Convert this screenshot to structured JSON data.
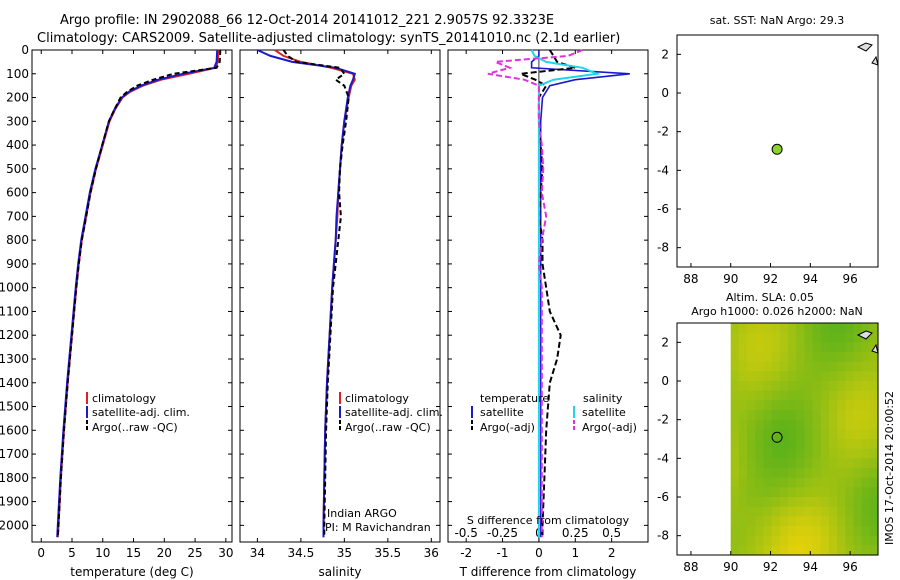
{
  "header": {
    "line1": "Argo profile: IN 2902088_66 12-Oct-2014 20141012_221 2.9057S 92.3323E",
    "line2": "Climatology: CARS2009. Satellite-adjusted climatology: synTS_20141010.nc (2.1d earlier)"
  },
  "side_stamp": "IMOS 17-Oct-2014 20:00:52",
  "legend": {
    "climatology": "climatology",
    "satellite": "satellite-adj. clim.",
    "argo": "Argo(..raw -QC)",
    "temperature": "temperature",
    "salinity": "salinity",
    "satellite_short": "satellite",
    "argo_adj": "Argo(-adj)"
  },
  "credits": {
    "program": "Indian ARGO",
    "pi": "PI: M Ravichandran"
  },
  "colors": {
    "climatology": "#e02020",
    "satellite": "#1a1acc",
    "argo": "#000000",
    "cyan": "#22d4e8",
    "magenta": "#e030e0",
    "dot": "#8bd22a"
  },
  "chart_data": [
    {
      "type": "line",
      "name": "temperature-profile",
      "xlabel": "temperature (deg C)",
      "ylabel": "",
      "xlim": [
        -1.5,
        31
      ],
      "ylim": [
        2070,
        0
      ],
      "xticks": [
        0,
        5,
        10,
        15,
        20,
        25,
        30
      ],
      "yticks": [
        0,
        100,
        200,
        300,
        400,
        500,
        600,
        700,
        800,
        900,
        1000,
        1100,
        1200,
        1300,
        1400,
        1500,
        1600,
        1700,
        1800,
        1900,
        2000
      ],
      "depth": [
        0,
        50,
        75,
        100,
        125,
        150,
        175,
        200,
        250,
        300,
        400,
        500,
        600,
        700,
        800,
        900,
        1000,
        1200,
        1400,
        1600,
        1800,
        2000,
        2050
      ],
      "series": [
        {
          "name": "climatology",
          "values": [
            28.8,
            28.7,
            28.3,
            24.0,
            19.5,
            16.5,
            14.5,
            13.2,
            12.0,
            11.1,
            10.0,
            8.9,
            8.0,
            7.3,
            6.6,
            6.1,
            5.7,
            5.0,
            4.3,
            3.7,
            3.2,
            2.8,
            2.7
          ]
        },
        {
          "name": "satellite",
          "values": [
            28.6,
            28.5,
            28.1,
            23.0,
            19.0,
            16.2,
            14.3,
            13.1,
            11.9,
            11.0,
            9.9,
            8.8,
            7.9,
            7.2,
            6.5,
            6.0,
            5.6,
            4.9,
            4.2,
            3.6,
            3.1,
            2.7,
            2.6
          ]
        },
        {
          "name": "argo",
          "values": [
            29.1,
            29.0,
            28.5,
            21.5,
            18.2,
            15.6,
            14.0,
            12.9,
            11.9,
            11.0,
            9.9,
            8.9,
            8.0,
            7.3,
            6.6,
            6.1,
            5.7,
            5.0,
            4.3,
            3.7,
            3.2,
            2.8,
            2.7
          ]
        }
      ]
    },
    {
      "type": "line",
      "name": "salinity-profile",
      "xlabel": "salinity",
      "xlim": [
        33.8,
        36.1
      ],
      "ylim": [
        2070,
        0
      ],
      "xticks": [
        34,
        34.5,
        35,
        35.5,
        36
      ],
      "depth": [
        0,
        25,
        50,
        75,
        100,
        125,
        150,
        200,
        300,
        400,
        500,
        600,
        700,
        800,
        900,
        1000,
        1200,
        1400,
        1600,
        1800,
        2000,
        2050
      ],
      "series": [
        {
          "name": "climatology",
          "values": [
            34.2,
            34.3,
            34.5,
            34.85,
            35.1,
            35.12,
            35.08,
            35.05,
            35.0,
            34.97,
            34.95,
            34.93,
            34.92,
            34.9,
            34.88,
            34.86,
            34.83,
            34.8,
            34.78,
            34.77,
            34.76,
            34.76
          ]
        },
        {
          "name": "satellite",
          "values": [
            34.0,
            34.15,
            34.4,
            34.9,
            35.12,
            35.1,
            35.07,
            35.04,
            35.0,
            34.97,
            34.95,
            34.93,
            34.91,
            34.9,
            34.88,
            34.86,
            34.83,
            34.8,
            34.78,
            34.77,
            34.76,
            34.76
          ]
        },
        {
          "name": "argo",
          "values": [
            34.3,
            34.35,
            34.45,
            34.95,
            35.0,
            34.9,
            35.0,
            35.05,
            35.02,
            34.98,
            34.95,
            34.94,
            34.96,
            34.93,
            34.9,
            34.87,
            34.84,
            34.81,
            34.79,
            34.78,
            34.77,
            34.77
          ]
        }
      ]
    },
    {
      "type": "line",
      "name": "difference-profile",
      "xlabel": "T difference from climatology",
      "xlabel_top": "S difference from climatology",
      "xlim": [
        -2.5,
        3.0
      ],
      "ylim": [
        2070,
        0
      ],
      "xticks": [
        -2,
        -1,
        0,
        1,
        2
      ],
      "xticks_top": [
        -0.5,
        -0.25,
        0,
        0.25,
        0.5
      ],
      "depth": [
        0,
        25,
        50,
        75,
        100,
        125,
        150,
        200,
        300,
        400,
        500,
        600,
        700,
        800,
        900,
        1000,
        1100,
        1200,
        1300,
        1400,
        1600,
        1800,
        2000,
        2050
      ],
      "series": [
        {
          "name": "temperature satellite",
          "values": [
            0,
            0,
            -0.2,
            -0.2,
            2.5,
            1.0,
            0.3,
            0.1,
            0.05,
            0.05,
            0.05,
            0.05,
            0.05,
            0.05,
            0.05,
            0.05,
            0.05,
            0.05,
            0.05,
            0.05,
            0.05,
            0.05,
            0.05,
            0.05
          ]
        },
        {
          "name": "temperature Argo(-adj)",
          "values": [
            0.3,
            0.4,
            0.5,
            1.0,
            -0.5,
            -0.1,
            0.2,
            0.0,
            0.0,
            0.05,
            0.1,
            0.05,
            0.0,
            0.1,
            0.1,
            0.2,
            0.3,
            0.6,
            0.5,
            0.3,
            0.2,
            0.15,
            0.1,
            0.1
          ]
        },
        {
          "name": "salinity satellite",
          "values": [
            -0.05,
            -0.03,
            0.05,
            0.3,
            0.4,
            0.1,
            0.0,
            0.0,
            0.0,
            0.0,
            0.0,
            0.0,
            0.0,
            0.0,
            0.0,
            0.0,
            0.0,
            0.0,
            0.0,
            0.0,
            0.0,
            0.0,
            0.0,
            0.0
          ]
        },
        {
          "name": "salinity Argo(-adj)",
          "values": [
            0.3,
            0.2,
            -0.3,
            -0.2,
            -0.35,
            -0.1,
            0.0,
            0.0,
            0.0,
            0.02,
            0.03,
            0.02,
            0.05,
            0.02,
            0.0,
            0.02,
            0.02,
            0.02,
            0.02,
            0.02,
            0.02,
            0.02,
            0.02,
            0.02
          ]
        }
      ]
    },
    {
      "type": "scatter",
      "name": "sst-map",
      "title": "sat. SST: NaN Argo: 29.3",
      "xlim": [
        87.3,
        97.4
      ],
      "ylim": [
        -9,
        3
      ],
      "xticks": [
        88,
        90,
        92,
        94,
        96
      ],
      "yticks": [
        -8,
        -6,
        -4,
        -2,
        0,
        2
      ],
      "points": [
        {
          "x": 92.33,
          "y": -2.91
        }
      ]
    },
    {
      "type": "heatmap",
      "name": "sla-map",
      "title1": "Altim. SLA: 0.05",
      "title2": "Argo h1000: 0.026 h2000: NaN",
      "xlim": [
        87.3,
        97.4
      ],
      "ylim": [
        -9,
        3
      ],
      "xticks": [
        88,
        90,
        92,
        94,
        96
      ],
      "yticks": [
        -8,
        -6,
        -4,
        -2,
        0,
        2
      ],
      "points": [
        {
          "x": 92.33,
          "y": -2.91
        }
      ],
      "data_xlim": [
        90,
        97.4
      ]
    }
  ]
}
